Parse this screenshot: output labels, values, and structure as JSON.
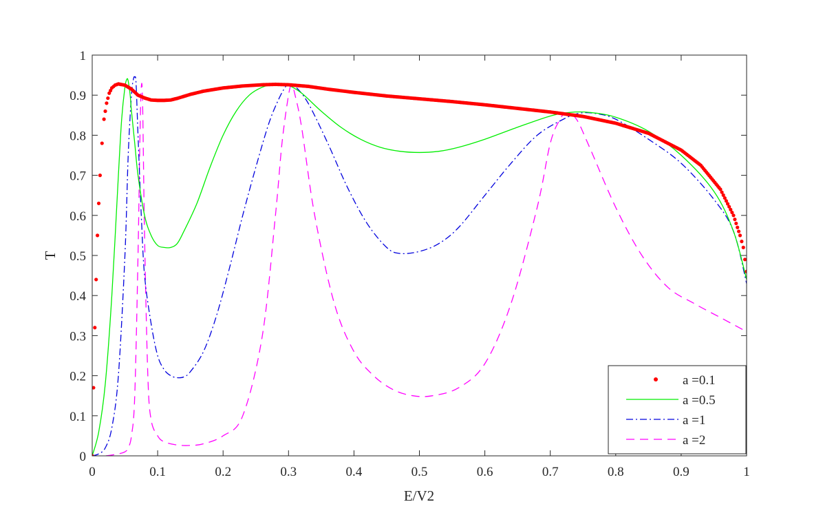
{
  "chart_data": {
    "type": "line",
    "title": "",
    "xlabel": "E/V2",
    "ylabel": "T",
    "xlim": [
      0,
      1
    ],
    "ylim": [
      0,
      1
    ],
    "grid": false,
    "legend_position": "bottom-right",
    "x_ticks": [
      0,
      0.1,
      0.2,
      0.3,
      0.4,
      0.5,
      0.6,
      0.7,
      0.8,
      0.9,
      1
    ],
    "x_tick_labels": [
      "0",
      "0.1",
      "0.2",
      "0.3",
      "0.4",
      "0.5",
      "0.6",
      "0.7",
      "0.8",
      "0.9",
      "1"
    ],
    "y_ticks": [
      0,
      0.1,
      0.2,
      0.3,
      0.4,
      0.5,
      0.6,
      0.7,
      0.8,
      0.9,
      1
    ],
    "y_tick_labels": [
      "0",
      "0.1",
      "0.2",
      "0.3",
      "0.4",
      "0.5",
      "0.6",
      "0.7",
      "0.8",
      "0.9",
      "1"
    ],
    "series": [
      {
        "name": "a =0.1",
        "color": "#ff0000",
        "style": "dots",
        "x": [
          0,
          0.002,
          0.004,
          0.006,
          0.008,
          0.01,
          0.012,
          0.015,
          0.018,
          0.022,
          0.026,
          0.03,
          0.035,
          0.04,
          0.05,
          0.06,
          0.07,
          0.08,
          0.09,
          0.1,
          0.11,
          0.12,
          0.13,
          0.15,
          0.17,
          0.2,
          0.23,
          0.26,
          0.28,
          0.3,
          0.33,
          0.36,
          0.4,
          0.45,
          0.5,
          0.55,
          0.6,
          0.65,
          0.7,
          0.75,
          0.8,
          0.85,
          0.9,
          0.93,
          0.96,
          0.98,
          0.99,
          0.995,
          1.0
        ],
        "y": [
          0.0,
          0.17,
          0.32,
          0.44,
          0.55,
          0.63,
          0.7,
          0.78,
          0.84,
          0.88,
          0.905,
          0.918,
          0.925,
          0.928,
          0.925,
          0.915,
          0.9,
          0.893,
          0.888,
          0.887,
          0.887,
          0.888,
          0.892,
          0.902,
          0.91,
          0.918,
          0.923,
          0.926,
          0.927,
          0.926,
          0.922,
          0.915,
          0.907,
          0.898,
          0.891,
          0.884,
          0.876,
          0.867,
          0.858,
          0.847,
          0.83,
          0.805,
          0.763,
          0.725,
          0.665,
          0.6,
          0.55,
          0.52,
          0.46
        ]
      },
      {
        "name": "a =0.5",
        "color": "#00ee00",
        "style": "solid",
        "x": [
          0,
          0.01,
          0.02,
          0.03,
          0.04,
          0.045,
          0.05,
          0.053,
          0.055,
          0.058,
          0.06,
          0.065,
          0.07,
          0.08,
          0.09,
          0.1,
          0.11,
          0.12,
          0.13,
          0.14,
          0.16,
          0.18,
          0.2,
          0.22,
          0.24,
          0.26,
          0.28,
          0.29,
          0.3,
          0.32,
          0.35,
          0.38,
          0.41,
          0.44,
          0.47,
          0.5,
          0.53,
          0.56,
          0.6,
          0.65,
          0.7,
          0.73,
          0.76,
          0.8,
          0.85,
          0.9,
          0.95,
          0.98,
          1.0
        ],
        "y": [
          0.0,
          0.06,
          0.18,
          0.4,
          0.7,
          0.84,
          0.92,
          0.94,
          0.935,
          0.9,
          0.86,
          0.78,
          0.7,
          0.6,
          0.55,
          0.525,
          0.52,
          0.52,
          0.53,
          0.56,
          0.63,
          0.72,
          0.8,
          0.86,
          0.9,
          0.92,
          0.928,
          0.929,
          0.925,
          0.905,
          0.86,
          0.82,
          0.79,
          0.77,
          0.76,
          0.757,
          0.76,
          0.77,
          0.79,
          0.82,
          0.848,
          0.857,
          0.857,
          0.845,
          0.81,
          0.75,
          0.66,
          0.56,
          0.44
        ]
      },
      {
        "name": "a =1",
        "color": "#0000dd",
        "style": "dashdot",
        "x": [
          0,
          0.01,
          0.02,
          0.03,
          0.04,
          0.05,
          0.055,
          0.06,
          0.063,
          0.065,
          0.067,
          0.07,
          0.075,
          0.08,
          0.09,
          0.1,
          0.11,
          0.12,
          0.13,
          0.14,
          0.15,
          0.17,
          0.19,
          0.21,
          0.23,
          0.25,
          0.27,
          0.285,
          0.295,
          0.3,
          0.31,
          0.33,
          0.36,
          0.39,
          0.42,
          0.45,
          0.47,
          0.5,
          0.53,
          0.56,
          0.6,
          0.64,
          0.68,
          0.72,
          0.745,
          0.77,
          0.8,
          0.85,
          0.9,
          0.95,
          0.98,
          1.0
        ],
        "y": [
          0.0,
          0.005,
          0.02,
          0.07,
          0.2,
          0.5,
          0.75,
          0.9,
          0.94,
          0.945,
          0.93,
          0.8,
          0.6,
          0.45,
          0.33,
          0.25,
          0.215,
          0.2,
          0.195,
          0.197,
          0.21,
          0.26,
          0.35,
          0.47,
          0.6,
          0.72,
          0.83,
          0.89,
          0.92,
          0.926,
          0.922,
          0.88,
          0.78,
          0.67,
          0.58,
          0.52,
          0.505,
          0.51,
          0.53,
          0.57,
          0.65,
          0.73,
          0.8,
          0.84,
          0.855,
          0.854,
          0.84,
          0.79,
          0.73,
          0.64,
          0.56,
          0.43
        ]
      },
      {
        "name": "a =2",
        "color": "#ff00ff",
        "style": "dashed",
        "x": [
          0,
          0.02,
          0.04,
          0.05,
          0.055,
          0.06,
          0.065,
          0.07,
          0.073,
          0.075,
          0.077,
          0.08,
          0.085,
          0.09,
          0.1,
          0.11,
          0.13,
          0.15,
          0.17,
          0.2,
          0.23,
          0.26,
          0.28,
          0.29,
          0.3,
          0.305,
          0.31,
          0.32,
          0.34,
          0.37,
          0.4,
          0.43,
          0.46,
          0.49,
          0.52,
          0.56,
          0.6,
          0.64,
          0.68,
          0.7,
          0.715,
          0.725,
          0.74,
          0.76,
          0.8,
          0.84,
          0.88,
          0.92,
          0.96,
          1.0
        ],
        "y": [
          0.0,
          0.0,
          0.005,
          0.01,
          0.02,
          0.05,
          0.15,
          0.5,
          0.8,
          0.92,
          0.88,
          0.55,
          0.2,
          0.09,
          0.05,
          0.035,
          0.027,
          0.026,
          0.03,
          0.05,
          0.1,
          0.3,
          0.6,
          0.78,
          0.9,
          0.925,
          0.9,
          0.82,
          0.6,
          0.38,
          0.26,
          0.2,
          0.165,
          0.15,
          0.15,
          0.17,
          0.23,
          0.38,
          0.62,
          0.78,
          0.84,
          0.855,
          0.84,
          0.77,
          0.62,
          0.5,
          0.42,
          0.38,
          0.345,
          0.31
        ]
      }
    ]
  }
}
